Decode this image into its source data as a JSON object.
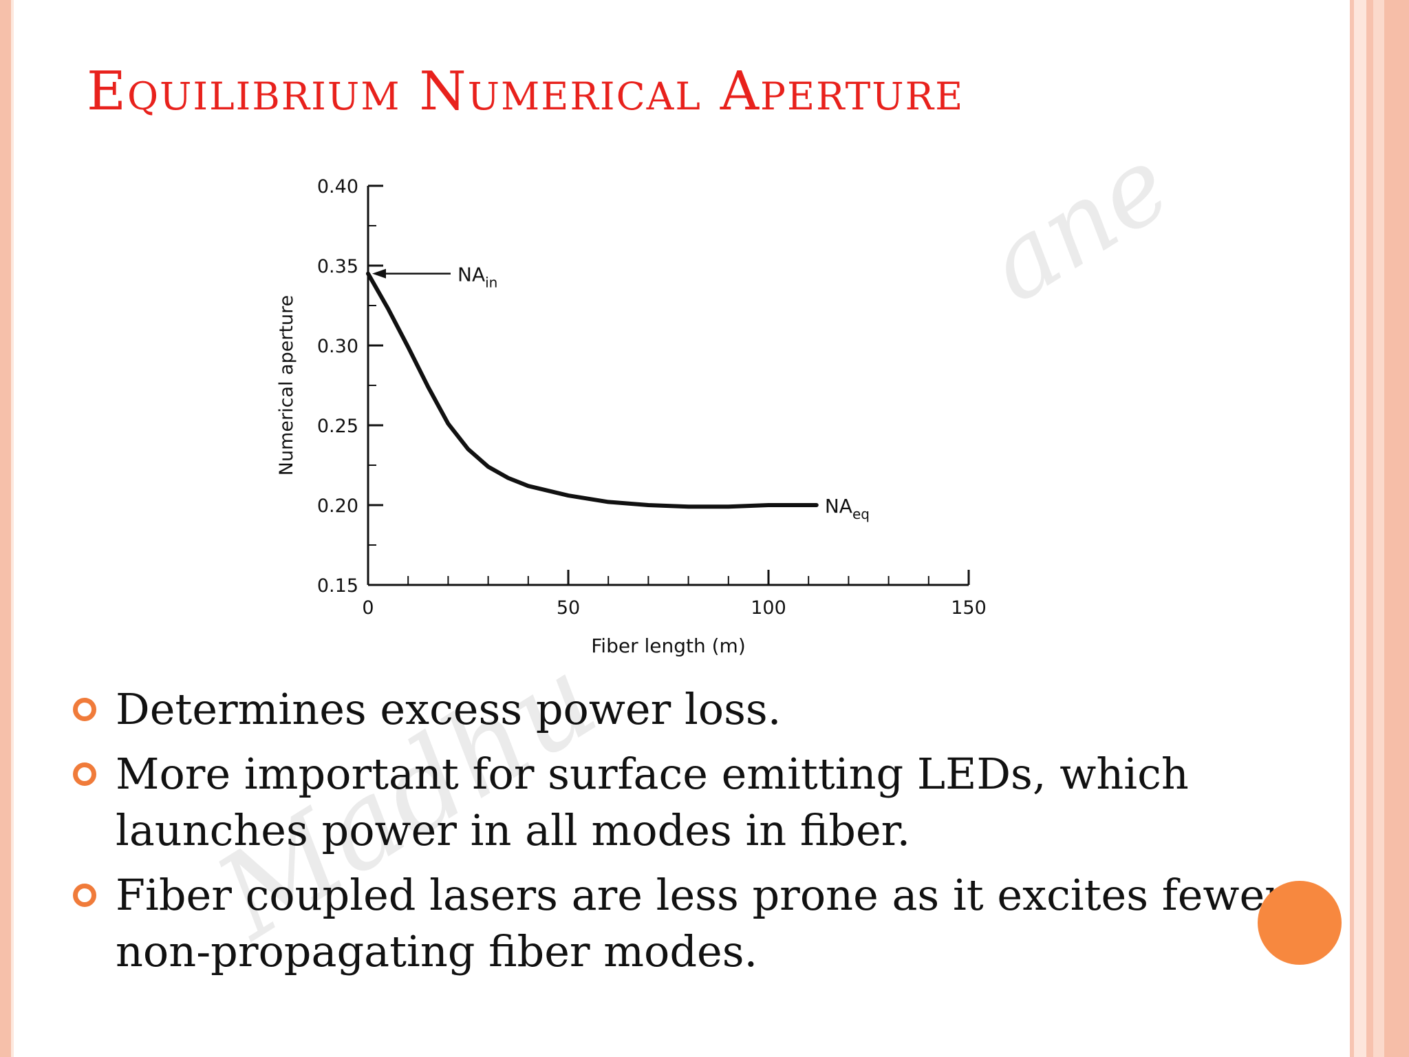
{
  "slide": {
    "title": "Equilibrium Numerical Aperture",
    "watermark_top": "ane",
    "watermark_bottom": "Madhu",
    "bullets": [
      "Determines excess power loss.",
      "More important for surface emitting LEDs, which launches power in all modes in fiber.",
      "Fiber coupled lasers are less prone as it excites fewer non-propagating fiber modes."
    ],
    "accent_color": "#f07b3a",
    "title_color": "#e8211c"
  },
  "chart_data": {
    "type": "line",
    "xlabel": "Fiber length (m)",
    "ylabel": "Numerical aperture",
    "xlim": [
      0,
      150
    ],
    "ylim": [
      0.15,
      0.4
    ],
    "x_ticks": [
      "0",
      "50",
      "100",
      "150"
    ],
    "y_ticks": [
      "0.40",
      "0.35",
      "0.30",
      "0.25",
      "0.20",
      "0.15"
    ],
    "grid": false,
    "series": [
      {
        "x": [
          0,
          5,
          10,
          15,
          20,
          25,
          30,
          35,
          40,
          50,
          60,
          70,
          80,
          90,
          100,
          112
        ],
        "y": [
          0.345,
          0.323,
          0.299,
          0.274,
          0.251,
          0.235,
          0.224,
          0.217,
          0.212,
          0.206,
          0.202,
          0.2,
          0.199,
          0.199,
          0.2,
          0.2
        ]
      }
    ],
    "annotations": [
      {
        "label": "NA",
        "sub": "in",
        "x": 0,
        "y": 0.345
      },
      {
        "label": "NA",
        "sub": "eq",
        "x": 112,
        "y": 0.2
      }
    ]
  }
}
